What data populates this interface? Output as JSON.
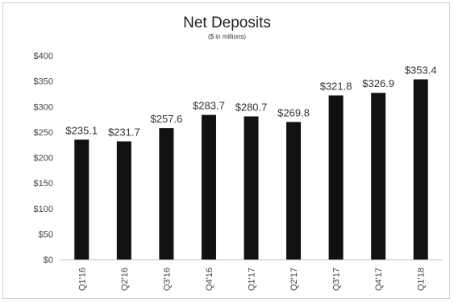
{
  "chart_data": {
    "type": "bar",
    "title": "Net Deposits",
    "subtitle": "($ in millions)",
    "xlabel": "",
    "ylabel": "",
    "categories": [
      "Q1'16",
      "Q2'16",
      "Q3'16",
      "Q4'16",
      "Q1'17",
      "Q2'17",
      "Q3'17",
      "Q4'17",
      "Q1'18"
    ],
    "values": [
      235.1,
      231.7,
      257.6,
      283.7,
      280.7,
      269.8,
      321.8,
      326.9,
      353.4
    ],
    "data_labels": [
      "$235.1",
      "$231.7",
      "$257.6",
      "$283.7",
      "$280.7",
      "$269.8",
      "$321.8",
      "$326.9",
      "$353.4"
    ],
    "ylim": [
      0,
      400
    ],
    "yticks": [
      0,
      50,
      100,
      150,
      200,
      250,
      300,
      350,
      400
    ],
    "ytick_labels": [
      "$0",
      "$50",
      "$100",
      "$150",
      "$200",
      "$250",
      "$300",
      "$350",
      "$400"
    ],
    "grid": false,
    "legend": "none",
    "bar_color": "#111111"
  }
}
